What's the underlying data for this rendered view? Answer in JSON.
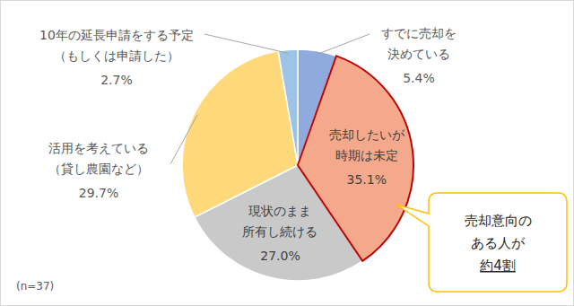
{
  "chart_data": {
    "type": "pie",
    "categories": [
      "すでに売却を\n決めている",
      "売却したいが\n時期は未定",
      "現状のまま\n所有し続ける",
      "活用を考えている\n（貸し農園など）",
      "10年の延長申請をする予定\n（もしくは申請した）"
    ],
    "values": [
      5.4,
      35.1,
      27.0,
      29.7,
      2.7
    ],
    "value_labels": [
      "5.4%",
      "35.1%",
      "27.0%",
      "29.7%",
      "2.7%"
    ],
    "colors": [
      "#8FAADC",
      "#F4A98C",
      "#C9C9C9",
      "#FFD97A",
      "#9DC3E6"
    ],
    "data_labels": true,
    "annotations": [
      "売却意向の\nある人が\n約4割",
      "(n=37)"
    ]
  }
}
